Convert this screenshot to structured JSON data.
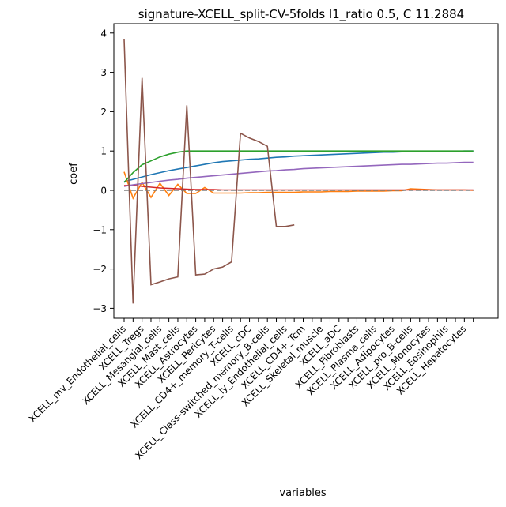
{
  "chart_data": {
    "type": "line",
    "title": "signature-XCELL_split-CV-5folds l1_ratio 0.5, C 11.2884",
    "xlabel": "variables",
    "ylabel": "coef",
    "ylim": [
      -3.2,
      4.2
    ],
    "yticks": [
      -3,
      -2,
      -1,
      0,
      1,
      2,
      3,
      4
    ],
    "grid": false,
    "categories": [
      "XCELL_mv_Endothelial_cells",
      "XCELL_Tregs",
      "XCELL_Mesangial_cells",
      "XCELL_Mast_cells",
      "XCELL_Astrocytes",
      "XCELL_Pericytes",
      "XCELL_CD4+_memory_T-cells",
      "XCELL_cDC",
      "XCELL_Class-switched_memory_B-cells",
      "XCELL_ly_Endothelial_cells",
      "XCELL_CD4+_Tcm",
      "XCELL_Skeletal_muscle",
      "XCELL_aDC",
      "XCELL_Fibroblasts",
      "XCELL_Plasma_cells",
      "XCELL_Adipocytes",
      "XCELL_pro_B-cells",
      "XCELL_Monocytes",
      "XCELL_Eosinophils",
      "XCELL_Hepatocytes"
    ],
    "x": [
      0,
      0.5,
      1,
      1.5,
      2,
      2.5,
      3,
      3.5,
      4,
      4.5,
      5,
      5.5,
      6,
      6.5,
      7,
      7.5,
      8,
      8.5,
      9,
      9.5,
      10,
      10.5,
      11,
      11.5,
      12,
      12.5,
      13,
      13.5,
      14,
      14.5,
      15,
      15.5,
      16,
      16.5,
      17,
      17.5,
      18,
      18.5,
      19,
      19.5
    ],
    "series": [
      {
        "color": "#1f77b4",
        "values": [
          0.22,
          0.28,
          0.34,
          0.4,
          0.45,
          0.5,
          0.54,
          0.58,
          0.62,
          0.66,
          0.7,
          0.73,
          0.75,
          0.77,
          0.79,
          0.8,
          0.82,
          0.84,
          0.85,
          0.87,
          0.88,
          0.89,
          0.9,
          0.91,
          0.92,
          0.93,
          0.94,
          0.95,
          0.96,
          0.97,
          0.97,
          0.98,
          0.98,
          0.98,
          0.99,
          0.99,
          0.99,
          0.99,
          1.0,
          1.0
        ]
      },
      {
        "color": "#ff7f0e",
        "values": [
          0.47,
          -0.2,
          0.2,
          -0.18,
          0.18,
          -0.13,
          0.15,
          -0.08,
          -0.08,
          0.07,
          -0.07,
          -0.07,
          -0.07,
          -0.07,
          -0.06,
          -0.06,
          -0.05,
          -0.05,
          -0.05,
          -0.05,
          -0.04,
          -0.04,
          -0.04,
          -0.03,
          -0.03,
          -0.03,
          -0.02,
          -0.02,
          -0.02,
          -0.02,
          -0.01,
          -0.01,
          0.04,
          0.03,
          0.02,
          0.01,
          0.01,
          0.01,
          0.01,
          0.0
        ]
      },
      {
        "color": "#2ca02c",
        "values": [
          0.2,
          0.45,
          0.65,
          0.75,
          0.85,
          0.92,
          0.97,
          1.0,
          1.0,
          1.0,
          1.0,
          1.0,
          1.0,
          1.0,
          1.0,
          1.0,
          1.0,
          1.0,
          1.0,
          1.0,
          1.0,
          1.0,
          1.0,
          1.0,
          1.0,
          1.0,
          1.0,
          1.0,
          1.0,
          1.0,
          1.0,
          1.0,
          1.0,
          1.0,
          1.0,
          1.0,
          1.0,
          1.0,
          1.0,
          1.0
        ]
      },
      {
        "color": "#d62728",
        "values": [
          0.12,
          0.13,
          0.1,
          0.08,
          0.06,
          0.05,
          0.04,
          0.03,
          0.02,
          0.02,
          0.02,
          0.01,
          0.01,
          0.01,
          0.01,
          0.01,
          0.01,
          0.01,
          0.01,
          0.01,
          0.01,
          0.01,
          0.01,
          0.01,
          0.01,
          0.01,
          0.01,
          0.01,
          0.01,
          0.01,
          0.01,
          0.01,
          0.01,
          0.01,
          0.01,
          0.01,
          0.01,
          0.01,
          0.01,
          0.01
        ]
      },
      {
        "color": "#9467bd",
        "values": [
          0.1,
          0.14,
          0.17,
          0.2,
          0.23,
          0.26,
          0.28,
          0.31,
          0.33,
          0.35,
          0.37,
          0.39,
          0.41,
          0.43,
          0.45,
          0.47,
          0.49,
          0.5,
          0.52,
          0.53,
          0.55,
          0.56,
          0.57,
          0.58,
          0.59,
          0.6,
          0.61,
          0.62,
          0.63,
          0.64,
          0.65,
          0.66,
          0.66,
          0.67,
          0.68,
          0.69,
          0.69,
          0.7,
          0.71,
          0.71
        ]
      },
      {
        "color": "#8c564b",
        "values": [
          3.84,
          -2.88,
          2.86,
          -2.4,
          -2.33,
          -2.25,
          -2.2,
          2.16,
          -2.15,
          -2.13,
          -2.0,
          -1.95,
          -1.82,
          1.45,
          1.33,
          1.24,
          1.12,
          -0.92,
          -0.92,
          -0.88,
          null,
          null,
          null,
          null,
          null,
          null,
          null,
          null,
          null,
          null,
          null,
          null,
          null,
          null,
          null,
          null,
          null,
          null,
          null,
          null
        ]
      },
      {
        "color": "#7f7f7f",
        "dashed": true,
        "values": [
          0.0,
          0.0,
          0.0,
          0.0,
          0.0,
          0.0,
          0.0,
          0.0,
          0.0,
          0.0,
          0.0,
          0.0,
          0.0,
          0.0,
          0.0,
          0.0,
          0.0,
          0.0,
          0.0,
          0.0,
          0.0,
          0.0,
          0.0,
          0.0,
          0.0,
          0.0,
          0.0,
          0.0,
          0.0,
          0.0,
          0.0,
          0.0,
          0.0,
          0.0,
          0.0,
          0.0,
          0.0,
          0.0,
          0.0,
          0.0
        ]
      }
    ]
  }
}
